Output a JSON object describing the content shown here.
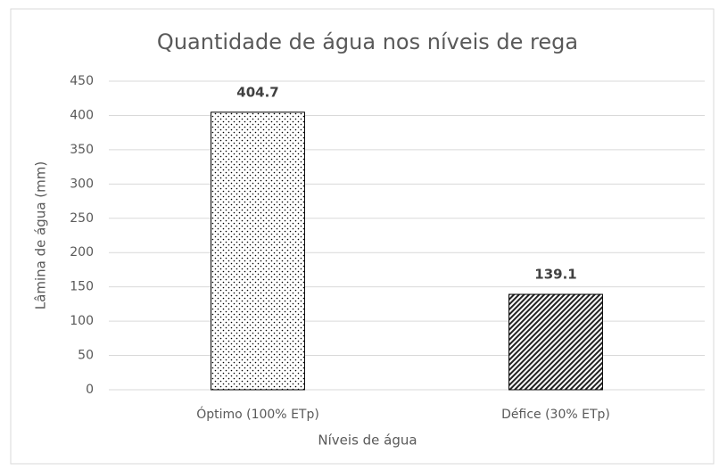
{
  "chart_data": {
    "type": "bar",
    "title": "Quantidade de água nos níveis de rega",
    "x_label": "Níveis de água",
    "y_label": "Lâmina de água (mm)",
    "categories": [
      "Óptimo (100% ETp)",
      "Défice (30% ETp)"
    ],
    "values": [
      404.7,
      139.1
    ],
    "patterns": [
      "dots",
      "hatch"
    ],
    "ylim": [
      0,
      450
    ],
    "yticks": [
      0,
      50,
      100,
      150,
      200,
      250,
      300,
      350,
      400,
      450
    ],
    "grid": true
  }
}
